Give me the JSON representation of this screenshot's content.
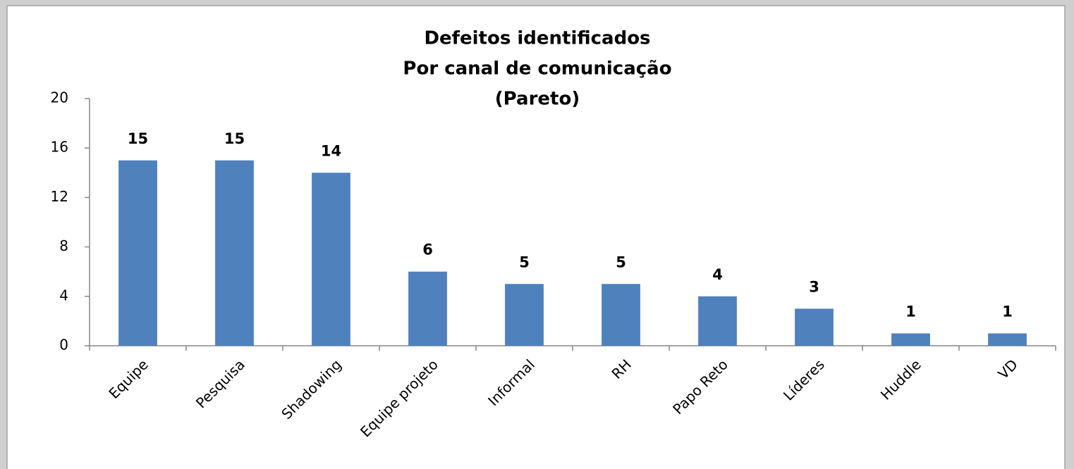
{
  "chart_data": {
    "type": "bar",
    "title": [
      "Defeitos identificados",
      "Por canal de comunicação",
      "(Pareto)"
    ],
    "categories": [
      "Equipe",
      "Pesquisa",
      "Shadowing",
      "Equipe projeto",
      "Informal",
      "RH",
      "Papo Reto",
      "Líderes",
      "Huddle",
      "VD"
    ],
    "values": [
      15,
      15,
      14,
      6,
      5,
      5,
      4,
      3,
      1,
      1
    ],
    "color": "#4f81bd",
    "ylim": [
      0,
      20
    ],
    "yticks": [
      0,
      4,
      8,
      12,
      16,
      20
    ],
    "grid": false
  }
}
